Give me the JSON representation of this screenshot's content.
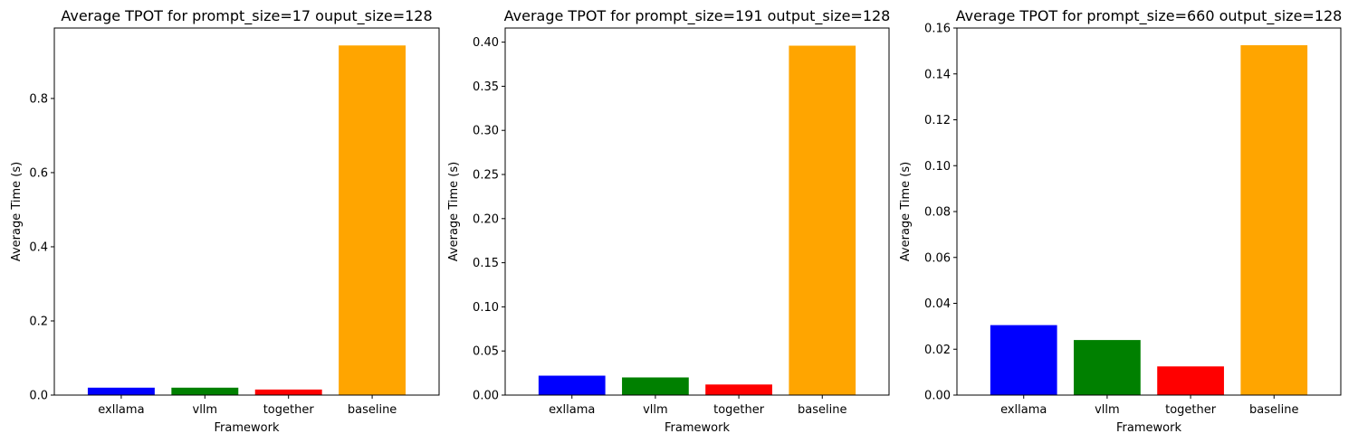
{
  "chart_data": [
    {
      "type": "bar",
      "title": "Average TPOT for prompt_size=17 ouput_size=128",
      "xlabel": "Framework",
      "ylabel": "Average Time (s)",
      "categories": [
        "exllama",
        "vllm",
        "together",
        "baseline"
      ],
      "values": [
        0.02,
        0.02,
        0.015,
        0.943
      ],
      "colors": [
        "#0000ff",
        "#008000",
        "#ff0000",
        "#ffa500"
      ],
      "ylim": [
        0,
        0.99
      ],
      "yticks": [
        0.0,
        0.2,
        0.4,
        0.6,
        0.8
      ],
      "ytick_labels": [
        "0.0",
        "0.2",
        "0.4",
        "0.6",
        "0.8"
      ],
      "grid": false
    },
    {
      "type": "bar",
      "title": "Average TPOT for prompt_size=191 output_size=128",
      "xlabel": "Framework",
      "ylabel": "Average Time (s)",
      "categories": [
        "exllama",
        "vllm",
        "together",
        "baseline"
      ],
      "values": [
        0.022,
        0.02,
        0.012,
        0.396
      ],
      "colors": [
        "#0000ff",
        "#008000",
        "#ff0000",
        "#ffa500"
      ],
      "ylim": [
        0,
        0.416
      ],
      "yticks": [
        0.0,
        0.05,
        0.1,
        0.15,
        0.2,
        0.25,
        0.3,
        0.35,
        0.4
      ],
      "ytick_labels": [
        "0.00",
        "0.05",
        "0.10",
        "0.15",
        "0.20",
        "0.25",
        "0.30",
        "0.35",
        "0.40"
      ],
      "grid": false
    },
    {
      "type": "bar",
      "title": "Average TPOT for prompt_size=660 output_size=128",
      "xlabel": "Framework",
      "ylabel": "Average Time (s)",
      "categories": [
        "exllama",
        "vllm",
        "together",
        "baseline"
      ],
      "values": [
        0.0305,
        0.024,
        0.0125,
        0.1525
      ],
      "colors": [
        "#0000ff",
        "#008000",
        "#ff0000",
        "#ffa500"
      ],
      "ylim": [
        0,
        0.16
      ],
      "yticks": [
        0.0,
        0.02,
        0.04,
        0.06,
        0.08,
        0.1,
        0.12,
        0.14,
        0.16
      ],
      "ytick_labels": [
        "0.00",
        "0.02",
        "0.04",
        "0.06",
        "0.08",
        "0.10",
        "0.12",
        "0.14",
        "0.16"
      ],
      "grid": false
    }
  ]
}
